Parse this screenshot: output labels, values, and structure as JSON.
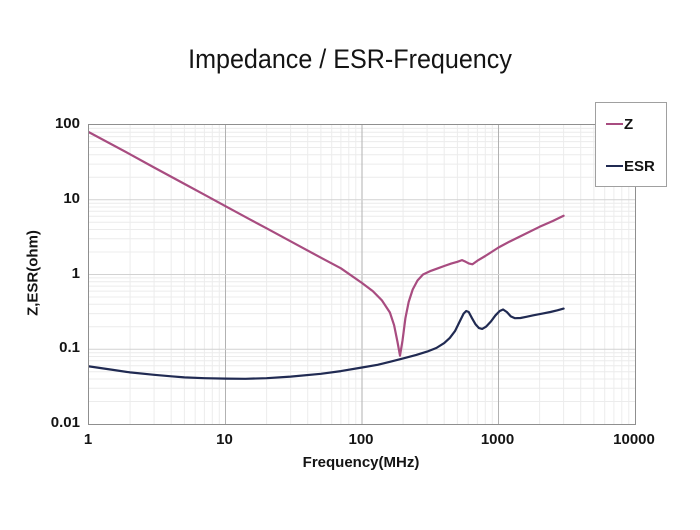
{
  "title": "Impedance / ESR-Frequency",
  "colors": {
    "z_line": "#a84c80",
    "esr_line": "#202a52",
    "grid_minor": "#ececec",
    "grid_major_h": "#d2d2d2",
    "grid_major_v": "#b2b2b2",
    "plot_border": "#8f8f8f",
    "text": "#141414",
    "background": "#ffffff"
  },
  "legend": {
    "position": "top-right",
    "items": [
      {
        "label": "Z"
      },
      {
        "label": "ESR"
      }
    ]
  },
  "chart_data": {
    "type": "line",
    "title": "Impedance / ESR-Frequency",
    "xlabel": "Frequency(MHz)",
    "ylabel": "Z,ESR(ohm)",
    "x_scale": "log",
    "y_scale": "log",
    "xlim": [
      1,
      10000
    ],
    "ylim": [
      0.01,
      100
    ],
    "x_ticks": [
      1,
      10,
      100,
      1000,
      10000
    ],
    "y_ticks": [
      100,
      10,
      1,
      0.1,
      0.01
    ],
    "grid": true,
    "legend_position": "top-right",
    "series": [
      {
        "name": "Z",
        "color": "#a84c80",
        "points": [
          [
            1,
            80
          ],
          [
            2,
            40.5
          ],
          [
            3,
            27
          ],
          [
            5,
            16.3
          ],
          [
            7,
            11.7
          ],
          [
            10,
            8.2
          ],
          [
            15,
            5.5
          ],
          [
            20,
            4.15
          ],
          [
            30,
            2.78
          ],
          [
            50,
            1.68
          ],
          [
            70,
            1.21
          ],
          [
            100,
            0.77
          ],
          [
            120,
            0.6
          ],
          [
            140,
            0.45
          ],
          [
            160,
            0.31
          ],
          [
            172,
            0.21
          ],
          [
            182,
            0.125
          ],
          [
            190,
            0.082
          ],
          [
            198,
            0.13
          ],
          [
            208,
            0.26
          ],
          [
            220,
            0.43
          ],
          [
            235,
            0.63
          ],
          [
            255,
            0.83
          ],
          [
            280,
            1.0
          ],
          [
            320,
            1.12
          ],
          [
            360,
            1.21
          ],
          [
            400,
            1.3
          ],
          [
            450,
            1.4
          ],
          [
            500,
            1.48
          ],
          [
            540,
            1.56
          ],
          [
            575,
            1.48
          ],
          [
            610,
            1.4
          ],
          [
            645,
            1.37
          ],
          [
            700,
            1.53
          ],
          [
            800,
            1.77
          ],
          [
            900,
            2.03
          ],
          [
            1000,
            2.3
          ],
          [
            1200,
            2.75
          ],
          [
            1500,
            3.35
          ],
          [
            2000,
            4.35
          ],
          [
            2500,
            5.2
          ],
          [
            3000,
            6.1
          ]
        ]
      },
      {
        "name": "ESR",
        "color": "#202a52",
        "points": [
          [
            1,
            0.059
          ],
          [
            1.5,
            0.053
          ],
          [
            2,
            0.049
          ],
          [
            3,
            0.0455
          ],
          [
            4,
            0.0435
          ],
          [
            5,
            0.042
          ],
          [
            7,
            0.041
          ],
          [
            10,
            0.0405
          ],
          [
            14,
            0.0403
          ],
          [
            20,
            0.041
          ],
          [
            30,
            0.043
          ],
          [
            50,
            0.047
          ],
          [
            70,
            0.051
          ],
          [
            100,
            0.057
          ],
          [
            130,
            0.062
          ],
          [
            160,
            0.068
          ],
          [
            200,
            0.0755
          ],
          [
            250,
            0.084
          ],
          [
            300,
            0.093
          ],
          [
            350,
            0.104
          ],
          [
            400,
            0.121
          ],
          [
            440,
            0.142
          ],
          [
            480,
            0.175
          ],
          [
            520,
            0.235
          ],
          [
            555,
            0.3
          ],
          [
            580,
            0.325
          ],
          [
            605,
            0.315
          ],
          [
            640,
            0.26
          ],
          [
            680,
            0.215
          ],
          [
            720,
            0.192
          ],
          [
            760,
            0.187
          ],
          [
            810,
            0.2
          ],
          [
            880,
            0.235
          ],
          [
            950,
            0.285
          ],
          [
            1020,
            0.325
          ],
          [
            1080,
            0.34
          ],
          [
            1150,
            0.315
          ],
          [
            1230,
            0.275
          ],
          [
            1320,
            0.26
          ],
          [
            1450,
            0.262
          ],
          [
            1600,
            0.272
          ],
          [
            1800,
            0.285
          ],
          [
            2100,
            0.3
          ],
          [
            2400,
            0.315
          ],
          [
            2700,
            0.332
          ],
          [
            3000,
            0.35
          ]
        ]
      }
    ]
  }
}
